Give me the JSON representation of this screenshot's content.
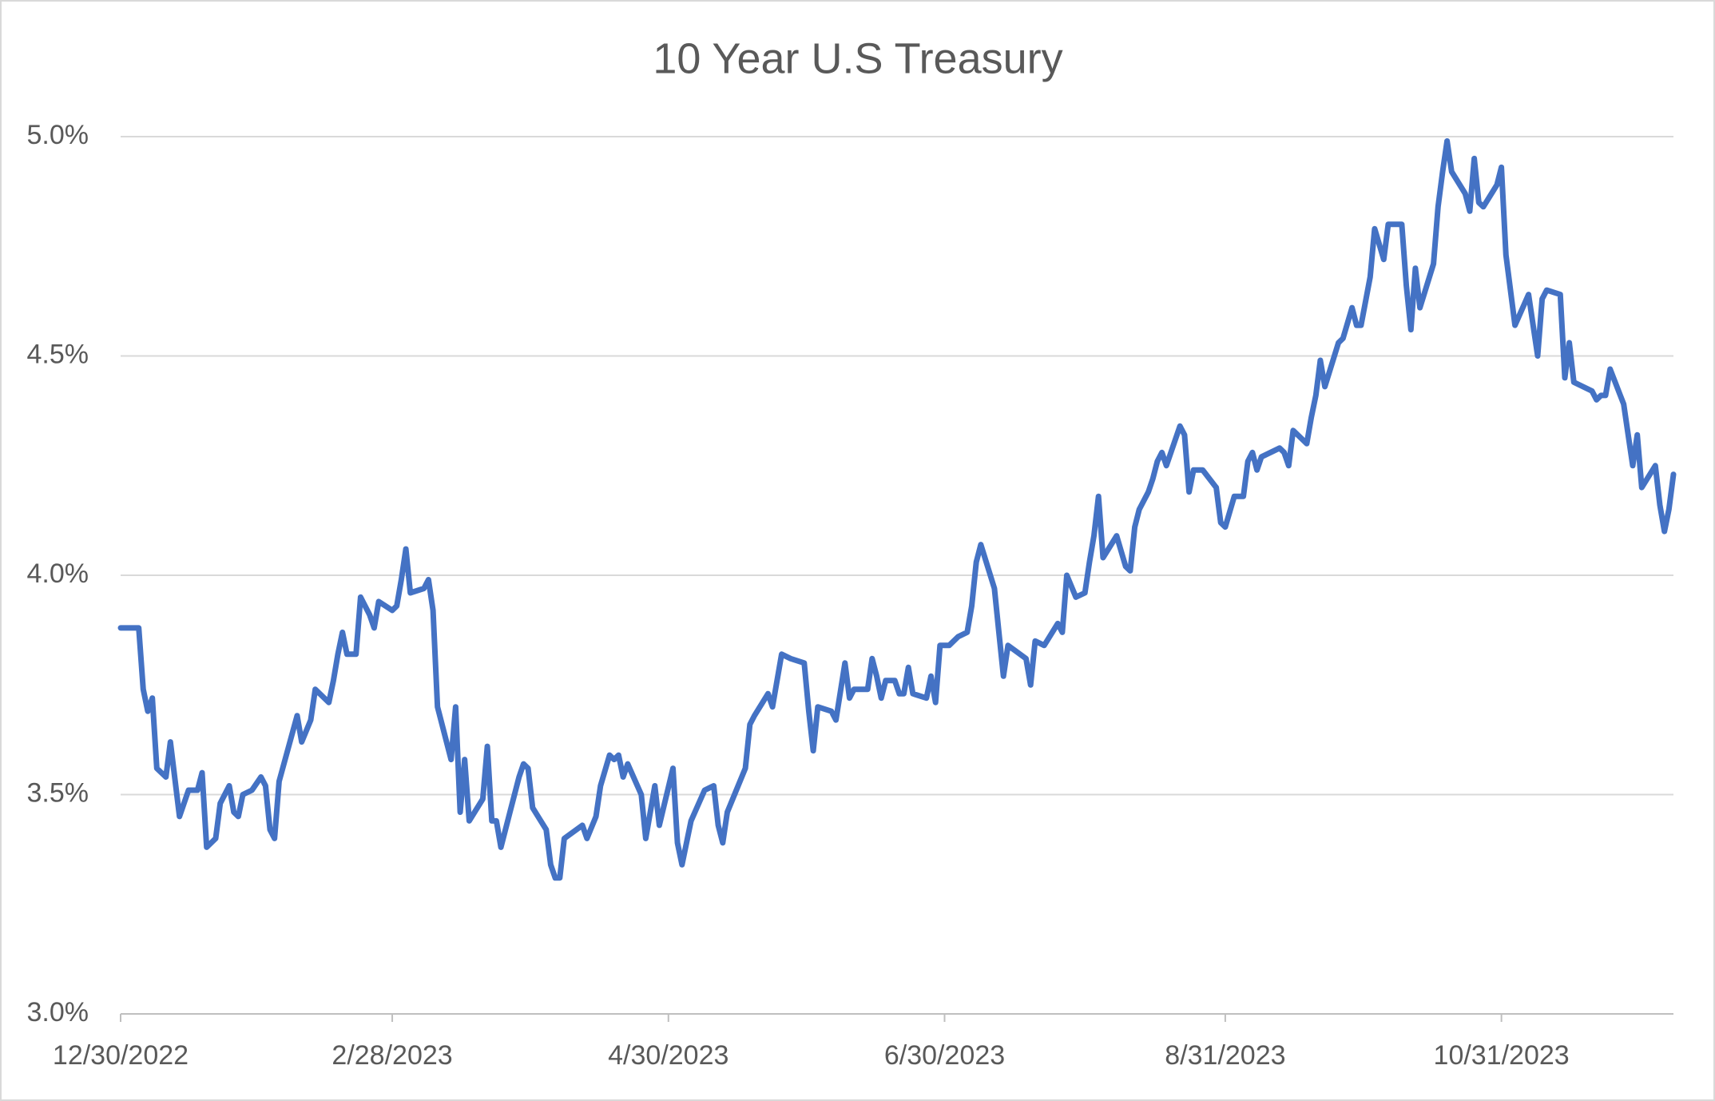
{
  "chart_data": {
    "type": "line",
    "title": "10 Year U.S Treasury",
    "x": [
      "12/30/2022",
      "1/3/2023",
      "1/4/2023",
      "1/5/2023",
      "1/6/2023",
      "1/7/2023",
      "1/9/2023",
      "1/10/2023",
      "1/12/2023",
      "1/14/2023",
      "1/16/2023",
      "1/17/2023",
      "1/18/2023",
      "1/20/2023",
      "1/21/2023",
      "1/23/2023",
      "1/24/2023",
      "1/25/2023",
      "1/26/2023",
      "1/28/2023",
      "1/30/2023",
      "1/31/2023",
      "2/1/2023",
      "2/2/2023",
      "2/3/2023",
      "2/7/2023",
      "2/8/2023",
      "2/10/2023",
      "2/11/2023",
      "2/14/2023",
      "2/15/2023",
      "2/16/2023",
      "2/17/2023",
      "2/18/2023",
      "2/20/2023",
      "2/21/2023",
      "2/23/2023",
      "2/24/2023",
      "2/25/2023",
      "2/28/2023",
      "3/1/2023",
      "3/2/2023",
      "3/3/2023",
      "3/4/2023",
      "3/7/2023",
      "3/8/2023",
      "3/9/2023",
      "3/10/2023",
      "3/13/2023",
      "3/14/2023",
      "3/15/2023",
      "3/16/2023",
      "3/17/2023",
      "3/20/2023",
      "3/21/2023",
      "3/22/2023",
      "3/23/2023",
      "3/24/2023",
      "3/26/2023",
      "3/28/2023",
      "3/29/2023",
      "3/30/2023",
      "3/31/2023",
      "4/3/2023",
      "4/4/2023",
      "4/5/2023",
      "4/6/2023",
      "4/7/2023",
      "4/11/2023",
      "4/12/2023",
      "4/14/2023",
      "4/15/2023",
      "4/17/2023",
      "4/18/2023",
      "4/19/2023",
      "4/20/2023",
      "4/21/2023",
      "4/24/2023",
      "4/25/2023",
      "4/27/2023",
      "4/28/2023",
      "5/1/2023",
      "5/2/2023",
      "5/3/2023",
      "5/5/2023",
      "5/8/2023",
      "5/10/2023",
      "5/11/2023",
      "5/12/2023",
      "5/13/2023",
      "5/15/2023",
      "5/17/2023",
      "5/18/2023",
      "5/19/2023",
      "5/22/2023",
      "5/23/2023",
      "5/25/2023",
      "5/27/2023",
      "5/30/2023",
      "5/31/2023",
      "6/1/2023",
      "6/2/2023",
      "6/5/2023",
      "6/6/2023",
      "6/8/2023",
      "6/9/2023",
      "6/10/2023",
      "6/13/2023",
      "6/14/2023",
      "6/15/2023",
      "6/16/2023",
      "6/17/2023",
      "6/19/2023",
      "6/20/2023",
      "6/21/2023",
      "6/22/2023",
      "6/23/2023",
      "6/26/2023",
      "6/27/2023",
      "6/28/2023",
      "6/29/2023",
      "7/1/2023",
      "7/3/2023",
      "7/5/2023",
      "7/6/2023",
      "7/7/2023",
      "7/8/2023",
      "7/11/2023",
      "7/12/2023",
      "7/13/2023",
      "7/14/2023",
      "7/18/2023",
      "7/19/2023",
      "7/20/2023",
      "7/22/2023",
      "7/25/2023",
      "7/26/2023",
      "7/27/2023",
      "7/29/2023",
      "7/31/2023",
      "8/1/2023",
      "8/2/2023",
      "8/3/2023",
      "8/4/2023",
      "8/7/2023",
      "8/9/2023",
      "8/10/2023",
      "8/11/2023",
      "8/12/2023",
      "8/14/2023",
      "8/15/2023",
      "8/16/2023",
      "8/17/2023",
      "8/18/2023",
      "8/21/2023",
      "8/22/2023",
      "8/23/2023",
      "8/24/2023",
      "8/26/2023",
      "8/29/2023",
      "8/30/2023",
      "8/31/2023",
      "9/2/2023",
      "9/4/2023",
      "9/5/2023",
      "9/6/2023",
      "9/7/2023",
      "9/8/2023",
      "9/12/2023",
      "9/13/2023",
      "9/14/2023",
      "9/15/2023",
      "9/18/2023",
      "9/19/2023",
      "9/20/2023",
      "9/21/2023",
      "9/22/2023",
      "9/25/2023",
      "9/26/2023",
      "9/28/2023",
      "9/29/2023",
      "9/30/2023",
      "10/2/2023",
      "10/3/2023",
      "10/5/2023",
      "10/6/2023",
      "10/9/2023",
      "10/10/2023",
      "10/11/2023",
      "10/12/2023",
      "10/13/2023",
      "10/16/2023",
      "10/17/2023",
      "10/18/2023",
      "10/19/2023",
      "10/20/2023",
      "10/23/2023",
      "10/24/2023",
      "10/25/2023",
      "10/26/2023",
      "10/27/2023",
      "10/30/2023",
      "10/31/2023",
      "11/1/2023",
      "11/3/2023",
      "11/6/2023",
      "11/8/2023",
      "11/9/2023",
      "11/10/2023",
      "11/13/2023",
      "11/14/2023",
      "11/15/2023",
      "11/16/2023",
      "11/20/2023",
      "11/21/2023",
      "11/22/2023",
      "11/23/2023",
      "11/24/2023",
      "11/27/2023",
      "11/28/2023",
      "11/29/2023",
      "11/30/2023",
      "12/1/2023",
      "12/4/2023",
      "12/5/2023",
      "12/6/2023",
      "12/7/2023",
      "12/8/2023"
    ],
    "values": [
      3.88,
      3.88,
      3.74,
      3.69,
      3.72,
      3.56,
      3.54,
      3.62,
      3.45,
      3.51,
      3.51,
      3.55,
      3.38,
      3.4,
      3.48,
      3.52,
      3.46,
      3.45,
      3.5,
      3.51,
      3.54,
      3.52,
      3.42,
      3.4,
      3.53,
      3.68,
      3.62,
      3.67,
      3.74,
      3.71,
      3.76,
      3.82,
      3.87,
      3.82,
      3.82,
      3.95,
      3.91,
      3.88,
      3.94,
      3.92,
      3.93,
      3.99,
      4.06,
      3.96,
      3.97,
      3.99,
      3.92,
      3.7,
      3.58,
      3.7,
      3.46,
      3.58,
      3.44,
      3.49,
      3.61,
      3.44,
      3.44,
      3.38,
      3.46,
      3.54,
      3.57,
      3.56,
      3.47,
      3.42,
      3.34,
      3.31,
      3.31,
      3.4,
      3.43,
      3.4,
      3.45,
      3.52,
      3.59,
      3.58,
      3.59,
      3.54,
      3.57,
      3.5,
      3.4,
      3.52,
      3.43,
      3.56,
      3.39,
      3.34,
      3.44,
      3.51,
      3.52,
      3.43,
      3.39,
      3.46,
      3.51,
      3.56,
      3.66,
      3.68,
      3.73,
      3.7,
      3.82,
      3.81,
      3.8,
      3.69,
      3.6,
      3.7,
      3.69,
      3.67,
      3.8,
      3.72,
      3.74,
      3.74,
      3.81,
      3.77,
      3.72,
      3.76,
      3.76,
      3.73,
      3.73,
      3.79,
      3.73,
      3.72,
      3.77,
      3.71,
      3.84,
      3.84,
      3.86,
      3.87,
      3.93,
      4.03,
      4.07,
      3.97,
      3.87,
      3.77,
      3.84,
      3.81,
      3.75,
      3.85,
      3.84,
      3.89,
      3.87,
      4.0,
      3.95,
      3.96,
      4.03,
      4.09,
      4.18,
      4.04,
      4.09,
      4.02,
      4.01,
      4.11,
      4.15,
      4.19,
      4.22,
      4.26,
      4.28,
      4.25,
      4.34,
      4.32,
      4.19,
      4.24,
      4.24,
      4.2,
      4.12,
      4.11,
      4.18,
      4.18,
      4.26,
      4.28,
      4.24,
      4.27,
      4.29,
      4.28,
      4.25,
      4.33,
      4.3,
      4.36,
      4.41,
      4.49,
      4.43,
      4.53,
      4.54,
      4.61,
      4.57,
      4.57,
      4.68,
      4.79,
      4.72,
      4.8,
      4.8,
      4.66,
      4.56,
      4.7,
      4.61,
      4.71,
      4.84,
      4.92,
      4.99,
      4.92,
      4.87,
      4.83,
      4.95,
      4.85,
      4.84,
      4.89,
      4.93,
      4.73,
      4.57,
      4.64,
      4.5,
      4.63,
      4.65,
      4.64,
      4.45,
      4.53,
      4.44,
      4.42,
      4.4,
      4.41,
      4.41,
      4.47,
      4.39,
      4.32,
      4.25,
      4.32,
      4.2,
      4.25,
      4.16,
      4.1,
      4.15,
      4.23
    ],
    "color": "#4472c4",
    "xlim": [
      "12/30/2022",
      "12/8/2023"
    ],
    "xticks": [
      "12/30/2022",
      "2/28/2023",
      "4/30/2023",
      "6/30/2023",
      "8/31/2023",
      "10/31/2023"
    ],
    "ylim": [
      3,
      5
    ],
    "yticks": [
      {
        "value": 3,
        "label": "3.0%"
      },
      {
        "value": 3.5,
        "label": "3.5%"
      },
      {
        "value": 4,
        "label": "4.0%"
      },
      {
        "value": 4.5,
        "label": "4.5%"
      },
      {
        "value": 5,
        "label": "5.0%"
      }
    ],
    "grid": true
  }
}
